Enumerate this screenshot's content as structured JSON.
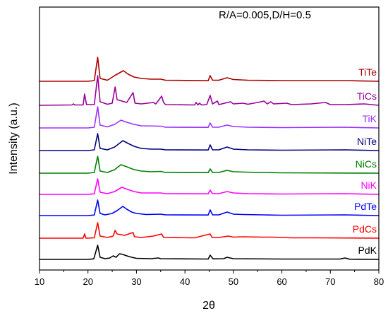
{
  "chart_data": {
    "type": "line",
    "title": "",
    "annotation": "R/A=0.005,D/H=0.5",
    "xlabel": "2θ",
    "ylabel": "Intensity (a.u.)",
    "xlim": [
      10,
      80
    ],
    "xticks": [
      10,
      20,
      30,
      40,
      50,
      60,
      70,
      80
    ],
    "y_tick_labels": "none",
    "grid": false,
    "legend": "labels at right end of each trace",
    "series": [
      {
        "name": "PdK",
        "color": "#000000",
        "offset": 0,
        "points": [
          [
            10,
            0
          ],
          [
            19,
            0
          ],
          [
            20,
            0
          ],
          [
            21.2,
            0.8
          ],
          [
            22,
            20
          ],
          [
            22.5,
            3
          ],
          [
            23.5,
            1
          ],
          [
            24.5,
            2
          ],
          [
            25.2,
            5
          ],
          [
            25.8,
            3
          ],
          [
            26.5,
            8
          ],
          [
            27.2,
            7
          ],
          [
            28,
            5
          ],
          [
            29,
            3
          ],
          [
            30,
            1.5
          ],
          [
            33,
            1
          ],
          [
            34.5,
            2
          ],
          [
            35,
            1
          ],
          [
            44.8,
            0.5
          ],
          [
            45.2,
            6
          ],
          [
            45.8,
            0.8
          ],
          [
            48,
            1
          ],
          [
            48.7,
            3
          ],
          [
            50,
            1
          ],
          [
            60,
            0.5
          ],
          [
            72,
            0.5
          ],
          [
            73,
            2
          ],
          [
            74,
            0.3
          ],
          [
            80,
            0
          ]
        ]
      },
      {
        "name": "PdCs",
        "color": "#ff0000",
        "offset": 30,
        "points": [
          [
            10,
            0
          ],
          [
            19,
            0
          ],
          [
            19.3,
            6
          ],
          [
            19.6,
            0
          ],
          [
            21.3,
            0.5
          ],
          [
            22,
            22
          ],
          [
            22.5,
            3
          ],
          [
            24,
            1
          ],
          [
            25.2,
            3
          ],
          [
            25.6,
            11
          ],
          [
            26,
            6
          ],
          [
            26.8,
            5
          ],
          [
            27.5,
            4
          ],
          [
            29.3,
            8
          ],
          [
            29.6,
            2
          ],
          [
            31,
            1
          ],
          [
            33.5,
            3
          ],
          [
            35.2,
            6
          ],
          [
            35.6,
            1
          ],
          [
            42,
            0.5
          ],
          [
            45.2,
            6
          ],
          [
            45.6,
            1
          ],
          [
            47,
            1
          ],
          [
            49,
            3
          ],
          [
            50,
            1.5
          ],
          [
            52,
            2
          ],
          [
            56,
            1.5
          ],
          [
            58,
            1.5
          ],
          [
            62,
            0.5
          ],
          [
            67,
            0.5
          ],
          [
            80,
            0
          ]
        ]
      },
      {
        "name": "PdTe",
        "color": "#0000ff",
        "offset": 62,
        "points": [
          [
            10,
            0
          ],
          [
            20,
            0
          ],
          [
            21.3,
            0.8
          ],
          [
            22,
            22
          ],
          [
            22.5,
            3
          ],
          [
            23.5,
            1
          ],
          [
            25,
            3
          ],
          [
            26,
            7
          ],
          [
            27.2,
            13
          ],
          [
            28,
            9
          ],
          [
            29,
            5
          ],
          [
            30,
            3
          ],
          [
            32,
            1.5
          ],
          [
            35,
            2
          ],
          [
            36,
            1
          ],
          [
            44.8,
            0.8
          ],
          [
            45.2,
            8
          ],
          [
            45.7,
            1
          ],
          [
            47,
            1
          ],
          [
            48.7,
            5
          ],
          [
            50,
            2
          ],
          [
            52,
            1.5
          ],
          [
            56,
            1
          ],
          [
            60,
            0.5
          ],
          [
            73,
            1
          ],
          [
            80,
            0
          ]
        ]
      },
      {
        "name": "NiK",
        "color": "#ff00ff",
        "offset": 92,
        "points": [
          [
            10,
            0
          ],
          [
            20,
            0
          ],
          [
            21.3,
            0.8
          ],
          [
            22,
            22
          ],
          [
            22.5,
            3
          ],
          [
            24,
            1
          ],
          [
            25.5,
            4
          ],
          [
            27,
            10
          ],
          [
            28.2,
            7
          ],
          [
            29.5,
            4
          ],
          [
            31,
            2
          ],
          [
            35,
            2
          ],
          [
            36,
            1
          ],
          [
            44.8,
            0.8
          ],
          [
            45.2,
            6
          ],
          [
            45.7,
            1
          ],
          [
            47,
            1
          ],
          [
            48.7,
            4
          ],
          [
            50,
            2
          ],
          [
            53,
            1
          ],
          [
            60,
            0.5
          ],
          [
            73,
            1
          ],
          [
            80,
            0
          ]
        ]
      },
      {
        "name": "NiCs",
        "color": "#008000",
        "offset": 122,
        "points": [
          [
            10,
            0
          ],
          [
            20,
            0
          ],
          [
            21.3,
            1
          ],
          [
            22,
            24
          ],
          [
            22.5,
            3
          ],
          [
            24,
            1
          ],
          [
            25.5,
            5
          ],
          [
            26.8,
            12
          ],
          [
            28,
            9
          ],
          [
            29.5,
            5
          ],
          [
            31,
            3
          ],
          [
            33,
            2
          ],
          [
            35,
            2.5
          ],
          [
            36,
            1
          ],
          [
            44.8,
            0.8
          ],
          [
            45.2,
            6
          ],
          [
            45.7,
            1
          ],
          [
            47,
            1
          ],
          [
            48.7,
            4
          ],
          [
            50,
            2
          ],
          [
            55,
            1
          ],
          [
            60,
            0.5
          ],
          [
            80,
            0
          ]
        ]
      },
      {
        "name": "NiTe",
        "color": "#000080",
        "offset": 154,
        "points": [
          [
            10,
            0
          ],
          [
            20,
            0
          ],
          [
            21.3,
            1
          ],
          [
            22,
            24
          ],
          [
            22.5,
            3
          ],
          [
            24,
            1
          ],
          [
            25.5,
            5
          ],
          [
            27.2,
            14
          ],
          [
            28.3,
            10
          ],
          [
            29.5,
            6
          ],
          [
            31,
            3
          ],
          [
            33,
            2
          ],
          [
            35,
            2
          ],
          [
            36,
            1
          ],
          [
            44.8,
            0.8
          ],
          [
            45.2,
            8
          ],
          [
            45.7,
            1
          ],
          [
            47,
            1
          ],
          [
            48.7,
            5
          ],
          [
            50,
            2
          ],
          [
            53,
            1
          ],
          [
            60,
            0.5
          ],
          [
            73,
            1
          ],
          [
            80,
            0
          ]
        ]
      },
      {
        "name": "TiK",
        "color": "#9933ff",
        "offset": 186,
        "points": [
          [
            10,
            0
          ],
          [
            20,
            0
          ],
          [
            21.3,
            1
          ],
          [
            22,
            30
          ],
          [
            22.5,
            4
          ],
          [
            24,
            1.5
          ],
          [
            25.5,
            5
          ],
          [
            26.8,
            11
          ],
          [
            28,
            8
          ],
          [
            29.5,
            5
          ],
          [
            31,
            3
          ],
          [
            35,
            2.5
          ],
          [
            36,
            1
          ],
          [
            44.8,
            0.8
          ],
          [
            45.2,
            7
          ],
          [
            45.7,
            1
          ],
          [
            47,
            1
          ],
          [
            48.7,
            4
          ],
          [
            50,
            2
          ],
          [
            53,
            1
          ],
          [
            60,
            0.5
          ],
          [
            73,
            1
          ],
          [
            80,
            0
          ]
        ]
      },
      {
        "name": "TiCs",
        "color": "#990099",
        "offset": 218,
        "points": [
          [
            10,
            0
          ],
          [
            16.7,
            0.5
          ],
          [
            17,
            2
          ],
          [
            17.3,
            0.5
          ],
          [
            19,
            0.5
          ],
          [
            19.3,
            16
          ],
          [
            19.7,
            1
          ],
          [
            21.3,
            1
          ],
          [
            22,
            42
          ],
          [
            22.5,
            5
          ],
          [
            24,
            1.5
          ],
          [
            25,
            3
          ],
          [
            25.6,
            26
          ],
          [
            26,
            8
          ],
          [
            27,
            6
          ],
          [
            28,
            4
          ],
          [
            29.3,
            18
          ],
          [
            29.7,
            3
          ],
          [
            31,
            2
          ],
          [
            33.5,
            4
          ],
          [
            34,
            2
          ],
          [
            35.2,
            13
          ],
          [
            35.6,
            4
          ],
          [
            36,
            1
          ],
          [
            42,
            0.5
          ],
          [
            42.3,
            4
          ],
          [
            42.7,
            0.5
          ],
          [
            43,
            3
          ],
          [
            43.4,
            0.5
          ],
          [
            44.5,
            1
          ],
          [
            45.2,
            14
          ],
          [
            45.7,
            2
          ],
          [
            46.7,
            6
          ],
          [
            47,
            1
          ],
          [
            49.4,
            5
          ],
          [
            50,
            2
          ],
          [
            52,
            3
          ],
          [
            53,
            1.5
          ],
          [
            55.7,
            5
          ],
          [
            56.3,
            6
          ],
          [
            57,
            2
          ],
          [
            57.7,
            5
          ],
          [
            58.3,
            2
          ],
          [
            61,
            3
          ],
          [
            62,
            1
          ],
          [
            66,
            2
          ],
          [
            69,
            4
          ],
          [
            70,
            1
          ],
          [
            73,
            1
          ],
          [
            77,
            2
          ],
          [
            80,
            0
          ]
        ]
      },
      {
        "name": "TiTe",
        "color": "#aa0000",
        "offset": 252,
        "points": [
          [
            10,
            0
          ],
          [
            20,
            0
          ],
          [
            21.3,
            1
          ],
          [
            22,
            34
          ],
          [
            22.5,
            4
          ],
          [
            24,
            1.5
          ],
          [
            25.5,
            8
          ],
          [
            26,
            10
          ],
          [
            27.3,
            15
          ],
          [
            28.3,
            10
          ],
          [
            29.5,
            6
          ],
          [
            31,
            4
          ],
          [
            33,
            3
          ],
          [
            35,
            3
          ],
          [
            36,
            1.5
          ],
          [
            44.8,
            0.8
          ],
          [
            45.2,
            8
          ],
          [
            45.7,
            1.5
          ],
          [
            47,
            1.5
          ],
          [
            48.7,
            5
          ],
          [
            50,
            2.5
          ],
          [
            53,
            1.5
          ],
          [
            60,
            1
          ],
          [
            73,
            1
          ],
          [
            80,
            0
          ]
        ]
      }
    ]
  }
}
